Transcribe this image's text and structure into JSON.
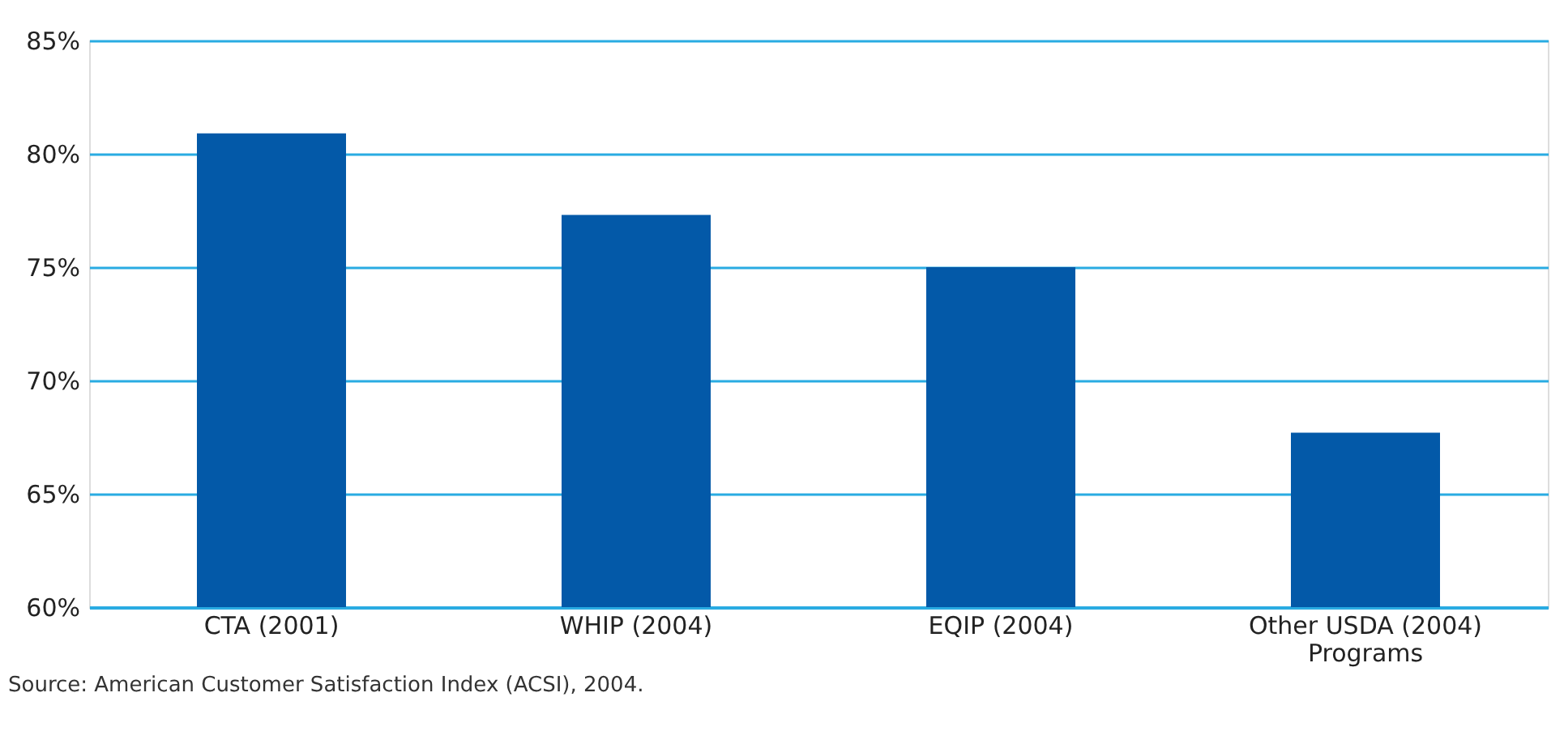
{
  "chart_data": {
    "type": "bar",
    "categories": [
      "CTA (2001)",
      "WHIP (2004)",
      "EQIP (2004)",
      "Other USDA (2004)\nPrograms"
    ],
    "values": [
      80.9,
      77.3,
      75.0,
      67.7
    ],
    "color": "#0359a8",
    "ylim": [
      60,
      85
    ],
    "yticks": [
      {
        "value": 60,
        "label": "60%"
      },
      {
        "value": 65,
        "label": "65%"
      },
      {
        "value": 70,
        "label": "70%"
      },
      {
        "value": 75,
        "label": "75%"
      },
      {
        "value": 80,
        "label": "80%"
      },
      {
        "value": 85,
        "label": "85%"
      }
    ],
    "grid": "y",
    "annotations": [
      "Source: American Customer Satisfaction Index (ACSI), 2004."
    ]
  }
}
